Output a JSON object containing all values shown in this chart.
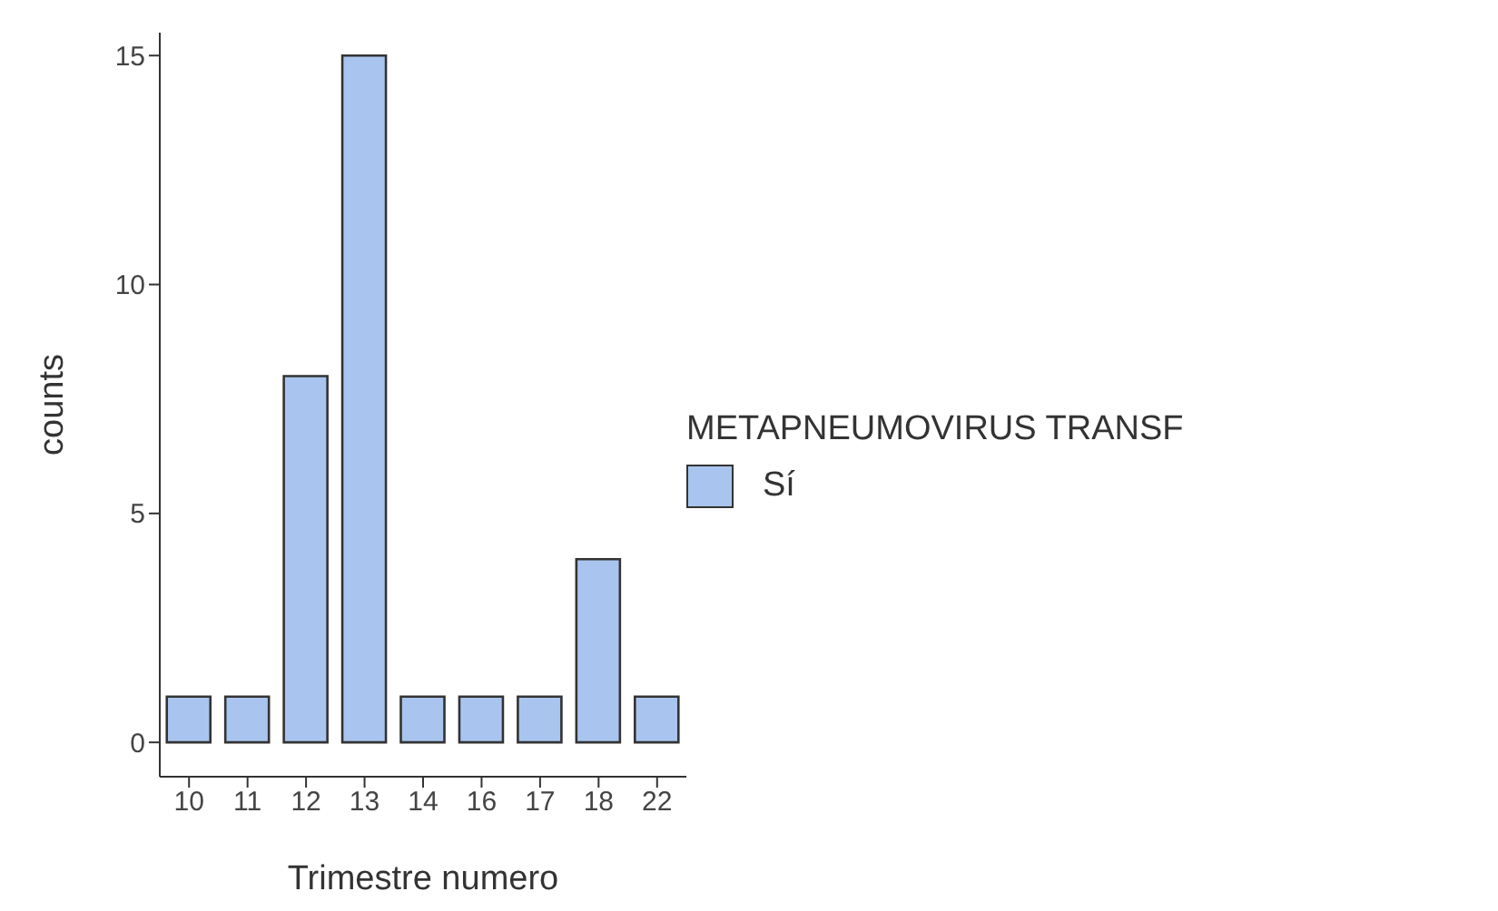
{
  "chart_data": {
    "type": "bar",
    "xlabel": "Trimestre numero",
    "ylabel": "counts",
    "legend_title": "METAPNEUMOVIRUS TRANSF",
    "categories": [
      "10",
      "11",
      "12",
      "13",
      "14",
      "16",
      "17",
      "18",
      "22"
    ],
    "series": [
      {
        "name": "Sí",
        "color": "#a9c5ef",
        "values": [
          1,
          1,
          8,
          15,
          1,
          1,
          1,
          4,
          1
        ]
      }
    ],
    "ylim": [
      -0.75,
      15.5
    ],
    "yticks": [
      0,
      5,
      10,
      15
    ],
    "legend": "right"
  }
}
